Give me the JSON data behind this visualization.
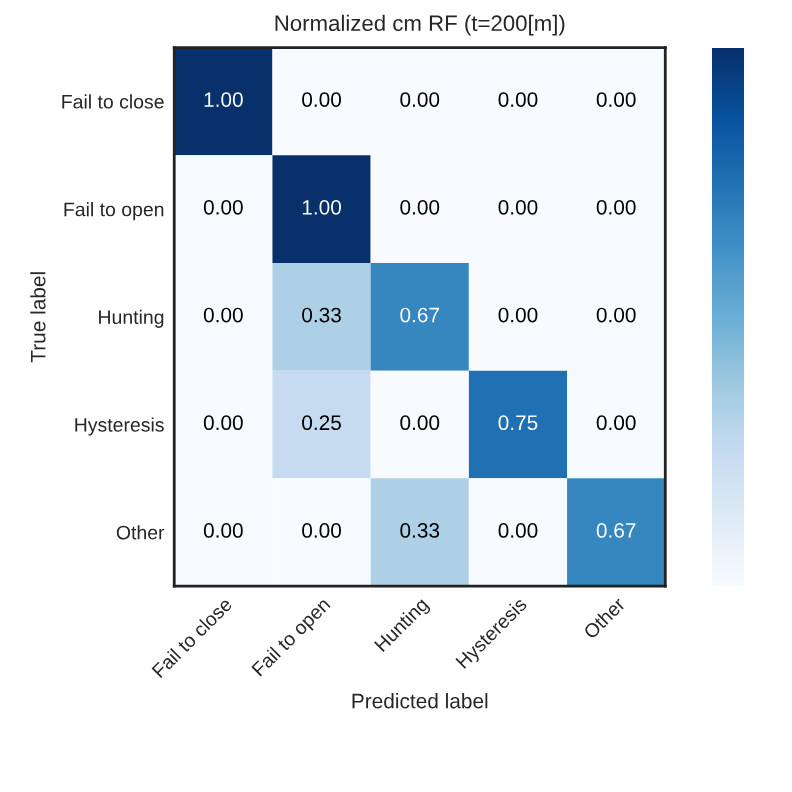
{
  "chart_data": {
    "type": "heatmap",
    "title": "Normalized cm RF (t=200[m])",
    "xlabel": "Predicted label",
    "ylabel": "True label",
    "categories": [
      "Fail to close",
      "Fail to open",
      "Hunting",
      "Hysteresis",
      "Other"
    ],
    "y_categories": [
      "Fail to close",
      "Fail to open",
      "Hunting",
      "Hysteresis",
      "Other"
    ],
    "cells": [
      [
        1.0,
        0.0,
        0.0,
        0.0,
        0.0
      ],
      [
        0.0,
        1.0,
        0.0,
        0.0,
        0.0
      ],
      [
        0.0,
        0.33,
        0.67,
        0.0,
        0.0
      ],
      [
        0.0,
        0.25,
        0.0,
        0.75,
        0.0
      ],
      [
        0.0,
        0.0,
        0.33,
        0.0,
        0.67
      ]
    ],
    "cell_labels": [
      [
        "1.00",
        "0.00",
        "0.00",
        "0.00",
        "0.00"
      ],
      [
        "0.00",
        "1.00",
        "0.00",
        "0.00",
        "0.00"
      ],
      [
        "0.00",
        "0.33",
        "0.67",
        "0.00",
        "0.00"
      ],
      [
        "0.00",
        "0.25",
        "0.00",
        "0.75",
        "0.00"
      ],
      [
        "0.00",
        "0.00",
        "0.33",
        "0.00",
        "0.67"
      ]
    ]
  }
}
